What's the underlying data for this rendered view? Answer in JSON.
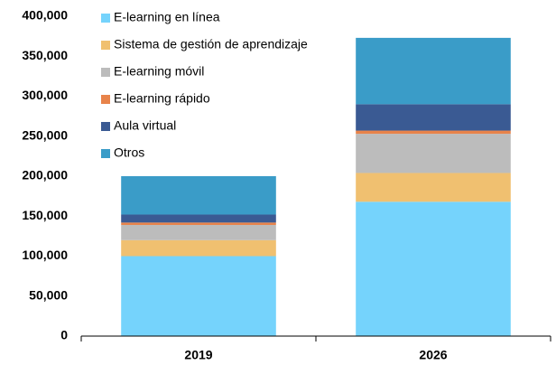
{
  "chart_data": {
    "type": "stacked_bar",
    "categories": [
      "2019",
      "2026"
    ],
    "series": [
      {
        "name": "E-learning en línea",
        "color": "#75d3fc",
        "values": [
          100000,
          168000
        ]
      },
      {
        "name": "Sistema de gestión de aprendizaje",
        "color": "#f0c070",
        "values": [
          20000,
          36000
        ]
      },
      {
        "name": "E-learning móvil",
        "color": "#bcbcbc",
        "values": [
          19000,
          49000
        ]
      },
      {
        "name": "E-learning rápido",
        "color": "#e8834a",
        "values": [
          3000,
          4000
        ]
      },
      {
        "name": "Aula virtual",
        "color": "#3a5a93",
        "values": [
          10000,
          33000
        ]
      },
      {
        "name": "Otros",
        "color": "#3a9cc8",
        "values": [
          48000,
          83000
        ]
      }
    ],
    "ylim": [
      0,
      400000
    ],
    "yticks": [
      0,
      {
        "value": 50000,
        "label": "50,000"
      },
      {
        "value": 100000,
        "label": "100,000"
      },
      {
        "value": 150000,
        "label": "150,000"
      },
      {
        "value": 200000,
        "label": "200,000"
      },
      {
        "value": 250000,
        "label": "250,000"
      },
      {
        "value": 300000,
        "label": "300,000"
      },
      {
        "value": 350000,
        "label": "350,000"
      },
      {
        "value": 400000,
        "label": "400,000"
      }
    ],
    "legend": "upper left"
  }
}
